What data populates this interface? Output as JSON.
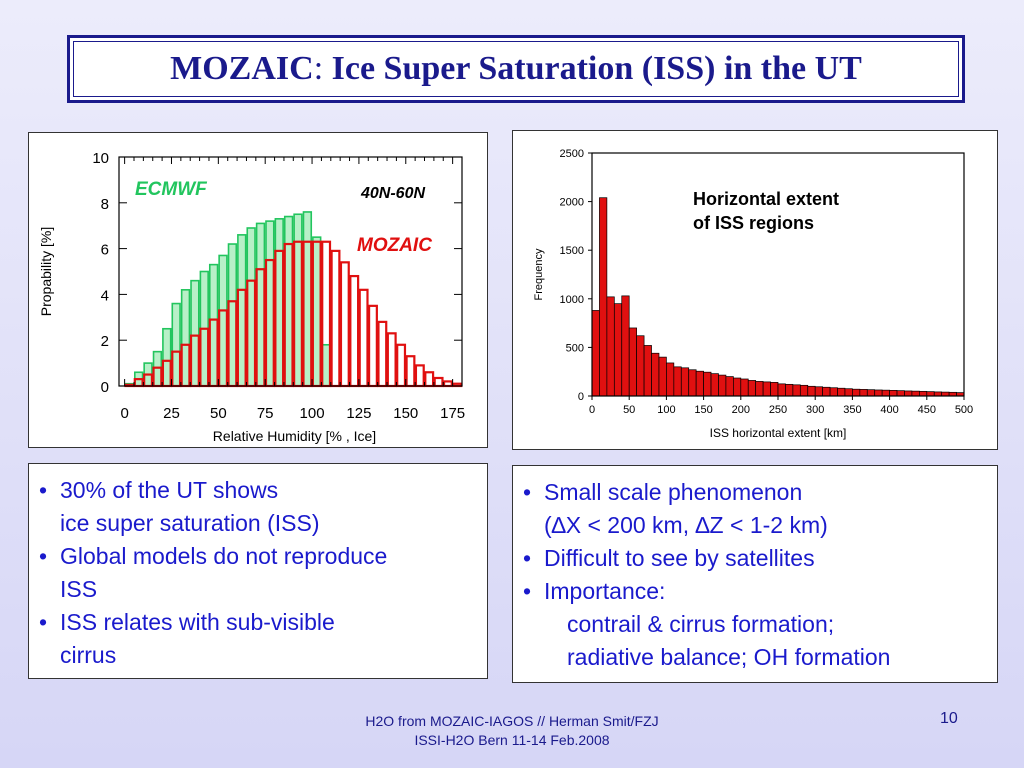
{
  "title_left": "MOZAIC",
  "title_colon": ": ",
  "title_right": "Ice Super Saturation (ISS) in the UT",
  "chart_data": [
    {
      "type": "bar",
      "ylabel": "Propability  [%]",
      "xlabel": "Relative Humidity  [% , Ice]",
      "xlim": [
        -3,
        180
      ],
      "ylim": [
        0,
        10
      ],
      "xticks": [
        0,
        25,
        50,
        75,
        100,
        125,
        150,
        175
      ],
      "yticks": [
        0,
        2,
        4,
        6,
        8,
        10
      ],
      "bin_width": 5,
      "annotation_region": "40N-60N",
      "series": [
        {
          "name": "ECMWF",
          "color": "#22c55e",
          "fill": "#b8f0c8",
          "bin_starts": [
            0,
            5,
            10,
            15,
            20,
            25,
            30,
            35,
            40,
            45,
            50,
            55,
            60,
            65,
            70,
            75,
            80,
            85,
            90,
            95,
            100,
            105
          ],
          "values": [
            0.1,
            0.6,
            1.0,
            1.5,
            2.5,
            3.6,
            4.2,
            4.6,
            5.0,
            5.3,
            5.7,
            6.2,
            6.6,
            6.9,
            7.1,
            7.2,
            7.3,
            7.4,
            7.5,
            7.6,
            6.5,
            1.8
          ]
        },
        {
          "name": "MOZAIC",
          "color": "#e01010",
          "fill": "none",
          "bin_starts": [
            0,
            5,
            10,
            15,
            20,
            25,
            30,
            35,
            40,
            45,
            50,
            55,
            60,
            65,
            70,
            75,
            80,
            85,
            90,
            95,
            100,
            105,
            110,
            115,
            120,
            125,
            130,
            135,
            140,
            145,
            150,
            155,
            160,
            165,
            170,
            175
          ],
          "values": [
            0.05,
            0.3,
            0.5,
            0.8,
            1.1,
            1.5,
            1.8,
            2.2,
            2.5,
            2.9,
            3.3,
            3.7,
            4.2,
            4.6,
            5.1,
            5.5,
            5.9,
            6.2,
            6.3,
            6.3,
            6.3,
            6.3,
            5.9,
            5.4,
            4.8,
            4.2,
            3.5,
            2.8,
            2.3,
            1.8,
            1.3,
            0.9,
            0.6,
            0.35,
            0.2,
            0.1
          ]
        }
      ]
    },
    {
      "type": "bar",
      "title": "Horizontal extent\nof ISS regions",
      "ylabel": "Frequency",
      "xlabel": "ISS horizontal extent [km]",
      "xlim": [
        0,
        500
      ],
      "ylim": [
        0,
        2500
      ],
      "xticks": [
        0,
        50,
        100,
        150,
        200,
        250,
        300,
        350,
        400,
        450,
        500
      ],
      "yticks": [
        0,
        500,
        1000,
        1500,
        2000,
        2500
      ],
      "bin_width": 10,
      "series": [
        {
          "name": "",
          "color": "#e01010",
          "bin_starts": [
            0,
            10,
            20,
            30,
            40,
            50,
            60,
            70,
            80,
            90,
            100,
            110,
            120,
            130,
            140,
            150,
            160,
            170,
            180,
            190,
            200,
            210,
            220,
            230,
            240,
            250,
            260,
            270,
            280,
            290,
            300,
            310,
            320,
            330,
            340,
            350,
            360,
            370,
            380,
            390,
            400,
            410,
            420,
            430,
            440,
            450,
            460,
            470,
            480,
            490
          ],
          "values": [
            880,
            2040,
            1020,
            950,
            1030,
            700,
            620,
            520,
            440,
            400,
            340,
            300,
            290,
            270,
            255,
            245,
            230,
            215,
            200,
            185,
            175,
            160,
            150,
            145,
            140,
            125,
            120,
            115,
            110,
            100,
            95,
            90,
            85,
            80,
            75,
            70,
            68,
            65,
            62,
            60,
            58,
            55,
            52,
            50,
            48,
            45,
            42,
            40,
            38,
            35
          ]
        }
      ]
    }
  ],
  "left_box": {
    "b1_l1": "30% of the UT shows",
    "b1_l2": "ice super saturation (ISS)",
    "b2_l1": "Global models do not reproduce",
    "b2_l2": "ISS",
    "b3_l1": "ISS relates with sub-visible",
    "b3_l2": "cirrus"
  },
  "right_box": {
    "b1_l1": "Small scale phenomenon",
    "b1_l2": "(∆X < 200 km, ∆Z < 1-2 km)",
    "b2_l1": "Difficult to see by satellites",
    "b3_l1": "Importance:",
    "b3_l2": "contrail & cirrus formation;",
    "b3_l3": "radiative balance; OH formation"
  },
  "bullet_char": "•",
  "footer_line1": "H2O from MOZAIC-IAGOS // Herman Smit/FZJ",
  "footer_line2": "ISSI-H2O Bern 11-14 Feb.2008",
  "page_number": "10"
}
